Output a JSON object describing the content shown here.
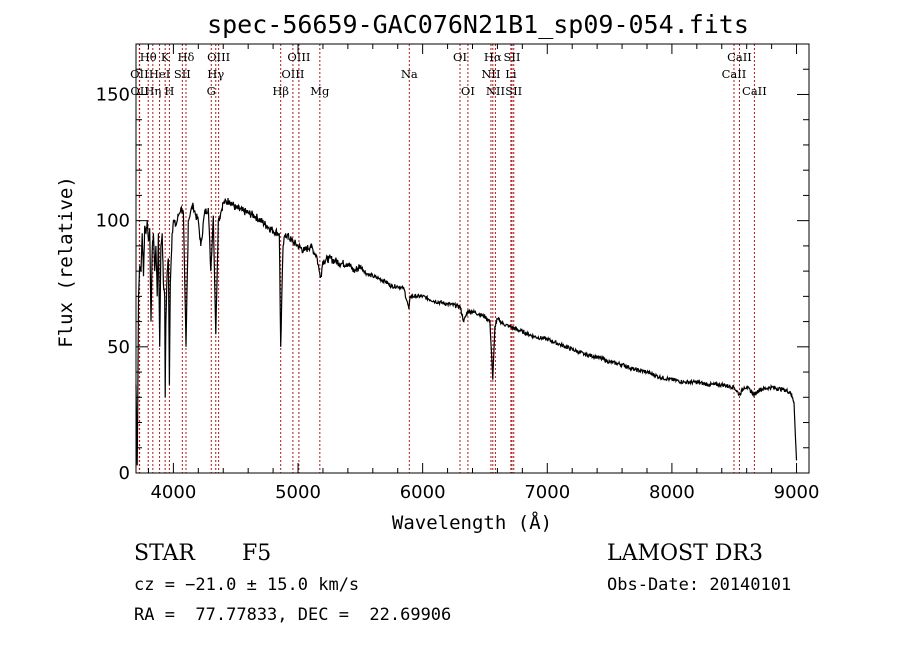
{
  "chart_data": {
    "type": "line",
    "title": "spec-56659-GAC076N21B1_sp09-054.fits",
    "xlabel": "Wavelength (Å)",
    "ylabel": "Flux (relative)",
    "xlim": [
      3700,
      9100
    ],
    "ylim": [
      0,
      170
    ],
    "x_ticks": [
      4000,
      5000,
      6000,
      7000,
      8000,
      9000
    ],
    "y_ticks": [
      0,
      50,
      100,
      150
    ],
    "grid": false,
    "series": [
      {
        "name": "spectrum",
        "x": [
          3700,
          3710,
          3720,
          3730,
          3740,
          3750,
          3760,
          3770,
          3780,
          3790,
          3800,
          3810,
          3820,
          3830,
          3840,
          3850,
          3860,
          3870,
          3880,
          3890,
          3900,
          3910,
          3920,
          3930,
          3934,
          3940,
          3950,
          3960,
          3968,
          3975,
          3990,
          4000,
          4020,
          4040,
          4060,
          4080,
          4101,
          4120,
          4140,
          4160,
          4180,
          4200,
          4220,
          4250,
          4280,
          4300,
          4320,
          4340,
          4360,
          4380,
          4400,
          4450,
          4500,
          4550,
          4600,
          4650,
          4700,
          4750,
          4800,
          4850,
          4861,
          4880,
          4900,
          4950,
          5000,
          5050,
          5100,
          5150,
          5170,
          5183,
          5200,
          5250,
          5300,
          5350,
          5400,
          5450,
          5500,
          5550,
          5600,
          5650,
          5700,
          5750,
          5800,
          5850,
          5890,
          5900,
          5950,
          6000,
          6100,
          6200,
          6300,
          6330,
          6360,
          6400,
          6450,
          6500,
          6540,
          6563,
          6580,
          6600,
          6650,
          6700,
          6800,
          6900,
          7000,
          7100,
          7200,
          7300,
          7400,
          7500,
          7600,
          7700,
          7800,
          7900,
          8000,
          8100,
          8200,
          8300,
          8400,
          8498,
          8542,
          8580,
          8600,
          8662,
          8700,
          8800,
          8900,
          8950,
          8980,
          9000
        ],
        "values": [
          35,
          3,
          70,
          82,
          80,
          95,
          78,
          98,
          95,
          100,
          92,
          97,
          60,
          88,
          95,
          80,
          90,
          70,
          95,
          50,
          90,
          95,
          75,
          70,
          30,
          60,
          80,
          85,
          35,
          75,
          95,
          100,
          98,
          102,
          105,
          103,
          50,
          100,
          104,
          106,
          102,
          100,
          90,
          103,
          105,
          80,
          102,
          55,
          100,
          103,
          107,
          108,
          105,
          104,
          103,
          102,
          100,
          98,
          96,
          95,
          50,
          90,
          95,
          92,
          90,
          88,
          90,
          86,
          80,
          78,
          84,
          85,
          84,
          83,
          83,
          80,
          82,
          79,
          78,
          77,
          76,
          74,
          74,
          73,
          65,
          70,
          70,
          70,
          68,
          67,
          66,
          60,
          64,
          64,
          63,
          62,
          60,
          37,
          58,
          61,
          59,
          58,
          56,
          54,
          53,
          51,
          49,
          47,
          46,
          44,
          43,
          41,
          40,
          38,
          37,
          36,
          36,
          35,
          35,
          34,
          31,
          34,
          34,
          31,
          33,
          34,
          33,
          32,
          28,
          5
        ]
      }
    ],
    "lines": [
      {
        "label": "Hθ",
        "x": 3798,
        "row": 0
      },
      {
        "label": "OII",
        "x": 3727,
        "row": 1
      },
      {
        "label": "OII",
        "x": 3729,
        "row": 2
      },
      {
        "label": "Hη",
        "x": 3835,
        "row": 2
      },
      {
        "label": "K",
        "x": 3934,
        "row": 0
      },
      {
        "label": "HeI",
        "x": 3889,
        "row": 1
      },
      {
        "label": "H",
        "x": 3968,
        "row": 2
      },
      {
        "label": "SII",
        "x": 4072,
        "row": 1
      },
      {
        "label": "Hδ",
        "x": 4101,
        "row": 0
      },
      {
        "label": "OIII",
        "x": 4363,
        "row": 0
      },
      {
        "label": "Hγ",
        "x": 4340,
        "row": 1
      },
      {
        "label": "G",
        "x": 4304,
        "row": 2
      },
      {
        "label": "Hβ",
        "x": 4861,
        "row": 2
      },
      {
        "label": "OIII",
        "x": 5007,
        "row": 0
      },
      {
        "label": "OIII",
        "x": 4959,
        "row": 1
      },
      {
        "label": "Mg",
        "x": 5175,
        "row": 2
      },
      {
        "label": "Na",
        "x": 5893,
        "row": 1
      },
      {
        "label": "OI",
        "x": 6300,
        "row": 0
      },
      {
        "label": "OI",
        "x": 6363,
        "row": 2
      },
      {
        "label": "Hα",
        "x": 6563,
        "row": 0
      },
      {
        "label": "NII",
        "x": 6548,
        "row": 1
      },
      {
        "label": "NII",
        "x": 6584,
        "row": 2
      },
      {
        "label": "SII",
        "x": 6717,
        "row": 0
      },
      {
        "label": "Li",
        "x": 6708,
        "row": 1
      },
      {
        "label": "SII",
        "x": 6731,
        "row": 2
      },
      {
        "label": "CaII",
        "x": 8542,
        "row": 0
      },
      {
        "label": "CaII",
        "x": 8498,
        "row": 1
      },
      {
        "label": "CaII",
        "x": 8662,
        "row": 2
      }
    ]
  },
  "info": {
    "class": "STAR",
    "subclass": "F5",
    "survey": "LAMOST DR3",
    "redshift": "cz = −21.0 ± 15.0 km/s",
    "obs_date": "Obs-Date: 20140101",
    "coords": "RA =  77.77833, DEC =  22.69906"
  },
  "colors": {
    "line_marker": "#b01818",
    "axis": "#000000",
    "spectrum": "#000000"
  }
}
